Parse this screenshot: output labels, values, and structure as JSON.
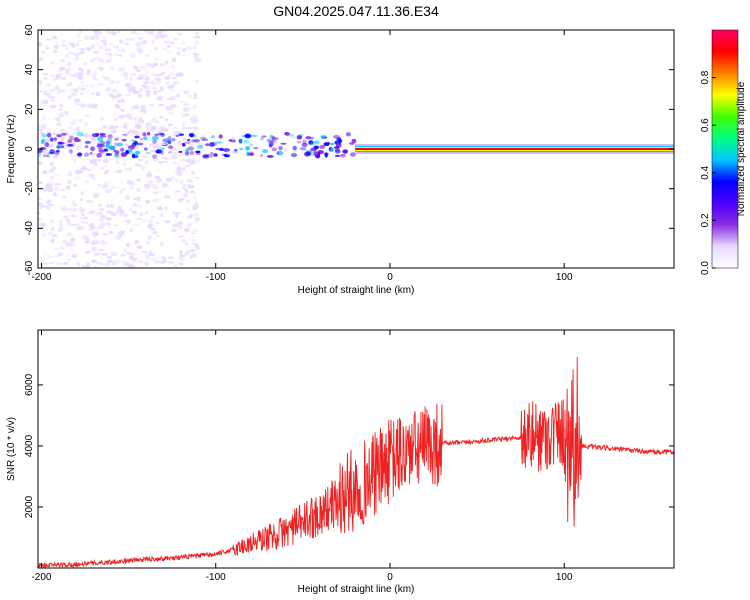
{
  "title": "GN04.2025.047.11.36.E34",
  "colors": {
    "snr_line": "#ee2222",
    "colormap": [
      "#ffffff",
      "#e8d8ff",
      "#8a2be2",
      "#4b00ff",
      "#0000ff",
      "#00c8ff",
      "#00ff80",
      "#40ff00",
      "#ffff00",
      "#ff8000",
      "#ff0000",
      "#ff0066"
    ]
  },
  "chart_data": [
    {
      "type": "heatmap",
      "xlabel": "Height of straight line (km)",
      "ylabel": "Frequency (Hz)",
      "xlim": [
        -202,
        163
      ],
      "ylim": [
        -60,
        60
      ],
      "xticks": [
        -200,
        -100,
        0,
        100
      ],
      "yticks": [
        60,
        40,
        20,
        0,
        -20,
        -40,
        -60
      ],
      "colorbar": {
        "label": "Normalized spectral amplitude",
        "range": [
          0,
          1
        ],
        "ticks": [
          "0.0",
          "0.2",
          "0.4",
          "0.6",
          "0.8"
        ]
      },
      "features": [
        {
          "x_range": [
            -202,
            -110
          ],
          "frequency": [
            -60,
            60
          ],
          "amplitude": 0.1,
          "description": "broadband noise"
        },
        {
          "x_range": [
            -202,
            -20
          ],
          "frequency": [
            -4,
            8
          ],
          "amplitude": 0.4
        },
        {
          "x_range": [
            -20,
            163
          ],
          "frequency": [
            0,
            0
          ],
          "amplitude": 1.0
        }
      ]
    },
    {
      "type": "line",
      "xlabel": "Height of straight line (km)",
      "ylabel": "SNR (10 * v/v)",
      "xlim": [
        -202,
        163
      ],
      "ylim": [
        0,
        7800
      ],
      "xticks": [
        -200,
        -100,
        0,
        100
      ],
      "yticks": [
        2000,
        4000,
        6000
      ],
      "series": [
        {
          "x": [
            -202,
            -180,
            -160,
            -140,
            -120,
            -100,
            -90,
            -80,
            -70,
            -60,
            -50,
            -40,
            -30,
            -20,
            -10,
            0,
            10,
            20,
            30,
            40,
            50,
            60,
            70,
            80,
            90,
            100,
            110,
            120,
            130,
            140,
            150,
            163
          ],
          "y": [
            80,
            120,
            200,
            280,
            350,
            450,
            600,
            800,
            1000,
            1200,
            1500,
            1800,
            2200,
            2600,
            3000,
            3500,
            3800,
            4000,
            4100,
            4100,
            4150,
            4200,
            4250,
            4300,
            4350,
            4500,
            4000,
            3950,
            3900,
            3850,
            3800,
            3800
          ]
        }
      ]
    }
  ]
}
